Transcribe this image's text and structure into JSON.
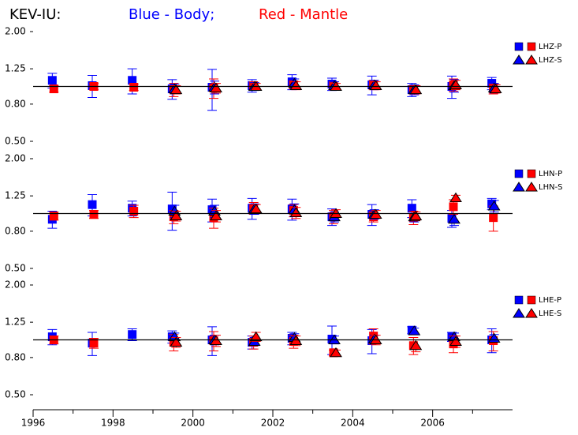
{
  "title": {
    "station": "KEV-IU:",
    "body": "Blue - Body;",
    "mantle": "Red - Mantle"
  },
  "body_color": "#0000ff",
  "mantle_color": "#ff0000",
  "chart_data": [
    {
      "type": "errorbar",
      "log_y": true,
      "ylim": [
        0.5,
        2.0
      ],
      "yticks": [
        {
          "value": 2.0,
          "label": "2.00"
        },
        {
          "value": 1.25,
          "label": "1.25"
        },
        {
          "value": 0.8,
          "label": "0.80"
        },
        {
          "value": 0.5,
          "label": "0.50"
        }
      ],
      "reference_line": 1.0,
      "xlim": [
        1996,
        2008
      ],
      "x": [
        1996.5,
        1997.5,
        1998.5,
        1999.5,
        2000.5,
        2001.5,
        2002.5,
        2003.5,
        2004.5,
        2005.5,
        2006.5,
        2007.5
      ],
      "series": [
        {
          "name": "LHZ-P",
          "marker": "square",
          "body": [
            1.08,
            1.01,
            1.08,
            0.97,
            0.99,
            1.01,
            1.06,
            1.03,
            1.02,
            0.96,
            1.0,
            1.04
          ],
          "body_err": [
            0.1,
            0.14,
            0.17,
            0.12,
            0.25,
            0.08,
            0.1,
            0.08,
            0.12,
            0.08,
            0.14,
            0.08
          ],
          "mantle": [
            0.97,
            1.0,
            0.99,
            0.96,
            0.98,
            1.01,
            1.02,
            1.01,
            1.02,
            0.96,
            1.02,
            0.97
          ],
          "mantle_err": [
            0.04,
            0.04,
            0.04,
            0.08,
            0.12,
            0.04,
            0.05,
            0.05,
            0.06,
            0.05,
            0.08,
            0.06
          ]
        },
        {
          "name": "LHZ-S",
          "marker": "triangle",
          "body": [
            null,
            null,
            null,
            0.97,
            0.99,
            1.0,
            1.04,
            1.01,
            1.02,
            0.96,
            1.01,
            0.98
          ],
          "body_err": [
            null,
            null,
            null,
            0.06,
            0.08,
            0.05,
            0.06,
            0.05,
            0.06,
            0.06,
            0.08,
            0.06
          ],
          "mantle": [
            null,
            null,
            null,
            0.96,
            0.98,
            1.0,
            1.01,
            1.0,
            1.01,
            0.96,
            1.02,
            0.97
          ],
          "mantle_err": [
            null,
            null,
            null,
            0.05,
            0.06,
            0.04,
            0.05,
            0.04,
            0.05,
            0.05,
            0.06,
            0.05
          ]
        }
      ]
    },
    {
      "type": "errorbar",
      "log_y": true,
      "ylim": [
        0.5,
        2.0
      ],
      "yticks": [
        {
          "value": 2.0,
          "label": "2.00"
        },
        {
          "value": 1.25,
          "label": "1.25"
        },
        {
          "value": 0.8,
          "label": "0.80"
        },
        {
          "value": 0.5,
          "label": "0.50"
        }
      ],
      "reference_line": 1.0,
      "xlim": [
        1996,
        2008
      ],
      "x": [
        1996.5,
        1997.5,
        1998.5,
        1999.5,
        2000.5,
        2001.5,
        2002.5,
        2003.5,
        2004.5,
        2005.5,
        2006.5,
        2007.5
      ],
      "series": [
        {
          "name": "LHN-P",
          "marker": "square",
          "body": [
            0.93,
            1.12,
            1.07,
            1.06,
            1.05,
            1.07,
            1.06,
            0.96,
            0.99,
            1.07,
            0.94,
            1.13
          ],
          "body_err": [
            0.1,
            0.15,
            0.1,
            0.25,
            0.15,
            0.14,
            0.14,
            0.1,
            0.13,
            0.12,
            0.1,
            0.08
          ],
          "mantle": [
            0.97,
            0.99,
            1.03,
            0.96,
            0.95,
            1.07,
            1.04,
            0.96,
            0.96,
            0.95,
            1.09,
            0.95
          ],
          "mantle_err": [
            0.05,
            0.05,
            0.08,
            0.08,
            0.12,
            0.08,
            0.08,
            0.08,
            0.06,
            0.08,
            0.1,
            0.15
          ]
        },
        {
          "name": "LHN-S",
          "marker": "triangle",
          "body": [
            null,
            null,
            null,
            1.03,
            1.03,
            1.06,
            1.05,
            0.96,
            0.99,
            0.96,
            0.93,
            1.1
          ],
          "body_err": [
            null,
            null,
            null,
            0.08,
            0.08,
            0.07,
            0.08,
            0.06,
            0.06,
            0.06,
            0.07,
            0.08
          ],
          "mantle": [
            null,
            null,
            null,
            0.97,
            0.97,
            1.06,
            1.01,
            1.0,
            0.99,
            0.97,
            1.22,
            null
          ],
          "mantle_err": [
            null,
            null,
            null,
            0.06,
            0.07,
            0.06,
            0.07,
            0.05,
            0.05,
            0.05,
            0.04,
            null
          ]
        }
      ]
    },
    {
      "type": "errorbar",
      "log_y": true,
      "ylim": [
        0.5,
        2.0
      ],
      "yticks": [
        {
          "value": 2.0,
          "label": "2.00"
        },
        {
          "value": 1.25,
          "label": "1.25"
        },
        {
          "value": 0.8,
          "label": "0.80"
        },
        {
          "value": 0.5,
          "label": "0.50"
        }
      ],
      "reference_line": 1.0,
      "xlim": [
        1996,
        2008
      ],
      "xticks": [
        1996,
        1998,
        2000,
        2002,
        2004,
        2006
      ],
      "xminor_ticks": [
        1997,
        1999,
        2001,
        2003,
        2005,
        2007
      ],
      "x": [
        1996.5,
        1997.5,
        1998.5,
        1999.5,
        2000.5,
        2001.5,
        2002.5,
        2003.5,
        2004.5,
        2005.5,
        2006.5,
        2007.5
      ],
      "series": [
        {
          "name": "LHE-P",
          "marker": "square",
          "body": [
            1.04,
            0.96,
            1.07,
            1.04,
            1.0,
            0.97,
            1.02,
            1.01,
            0.99,
            1.13,
            1.04,
            1.0
          ],
          "body_err": [
            0.1,
            0.14,
            0.08,
            0.08,
            0.18,
            0.08,
            0.08,
            0.18,
            0.15,
            0.05,
            0.06,
            0.15
          ],
          "mantle": [
            1.0,
            0.96,
            null,
            0.97,
            0.99,
            0.97,
            0.98,
            0.85,
            1.05,
            0.93,
            0.95,
            0.99
          ],
          "mantle_err": [
            0.05,
            0.06,
            null,
            0.1,
            0.12,
            0.08,
            0.08,
            0.03,
            0.1,
            0.1,
            0.1,
            0.12
          ]
        },
        {
          "name": "LHE-S",
          "marker": "triangle",
          "body": [
            null,
            null,
            null,
            1.04,
            1.0,
            0.98,
            1.03,
            1.0,
            1.01,
            1.12,
            1.04,
            1.02
          ],
          "body_err": [
            null,
            null,
            null,
            0.05,
            0.06,
            0.05,
            0.05,
            0.05,
            0.05,
            0.04,
            0.05,
            0.05
          ],
          "mantle": [
            null,
            null,
            null,
            0.97,
            0.99,
            1.04,
            0.99,
            0.85,
            1.0,
            0.93,
            0.98,
            null
          ],
          "mantle_err": [
            null,
            null,
            null,
            0.06,
            0.07,
            0.06,
            0.06,
            0.03,
            0.06,
            0.07,
            0.07,
            null
          ]
        }
      ]
    }
  ]
}
